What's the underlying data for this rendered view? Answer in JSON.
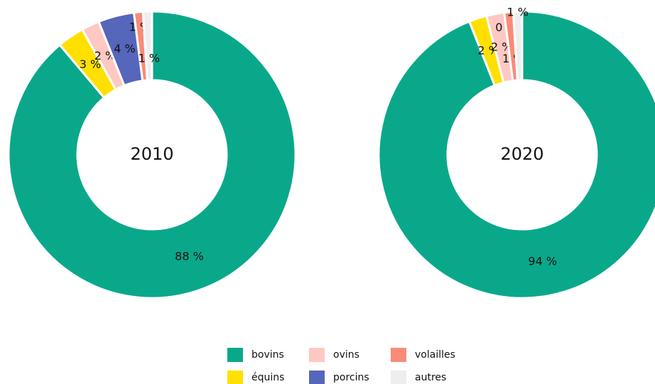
{
  "chart_data": [
    {
      "type": "donut",
      "title": "2010",
      "categories": [
        "bovins",
        "équins",
        "ovins",
        "porcins",
        "volailles",
        "autres"
      ],
      "values": [
        88,
        3,
        2,
        4,
        1,
        1
      ],
      "value_labels": [
        "88 %",
        "3 %",
        "2 %",
        "4 %",
        "1 %",
        "1 %"
      ],
      "colors": [
        "#0aa88a",
        "#ffe000",
        "#ffc8c2",
        "#5566bb",
        "#f98b78",
        "#eeeeee"
      ]
    },
    {
      "type": "donut",
      "title": "2020",
      "categories": [
        "bovins",
        "équins",
        "ovins",
        "porcins",
        "volailles",
        "autres"
      ],
      "values": [
        94,
        2,
        2,
        0,
        1,
        1
      ],
      "value_labels": [
        "94 %",
        "2 %",
        "2 %",
        "0 %",
        "1 %",
        "1 %"
      ],
      "colors": [
        "#0aa88a",
        "#ffe000",
        "#ffc8c2",
        "#5566bb",
        "#f98b78",
        "#eeeeee"
      ]
    }
  ]
}
